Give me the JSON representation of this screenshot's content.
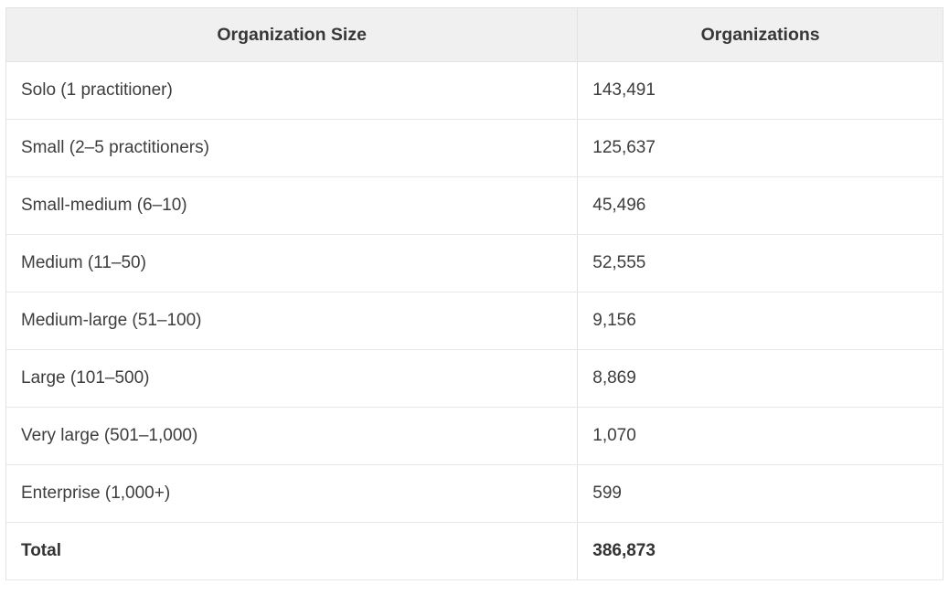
{
  "chart_data": {
    "type": "table",
    "title": "",
    "columns": [
      "Organization Size",
      "Organizations"
    ],
    "rows": [
      [
        "Solo (1 practitioner)",
        "143,491"
      ],
      [
        "Small (2–5 practitioners)",
        "125,637"
      ],
      [
        "Small-medium (6–10)",
        "45,496"
      ],
      [
        "Medium (11–50)",
        "52,555"
      ],
      [
        "Medium-large (51–100)",
        "9,156"
      ],
      [
        "Large (101–500)",
        "8,869"
      ],
      [
        "Very large (501–1,000)",
        "1,070"
      ],
      [
        "Enterprise (1,000+)",
        "599"
      ]
    ],
    "total_row": [
      "Total",
      "386,873"
    ],
    "values_numeric": [
      143491,
      125637,
      45496,
      52555,
      9156,
      8869,
      1070,
      599
    ],
    "total_numeric": 386873,
    "layout": {
      "header_align": "center",
      "body_align": "left",
      "grid": "full-borders"
    }
  },
  "colors": {
    "header_background": "#f0f0f0",
    "border": "#e2e2e2",
    "row_divider": "#e7e7e7",
    "text": "#3d3d3d",
    "background": "#ffffff"
  }
}
